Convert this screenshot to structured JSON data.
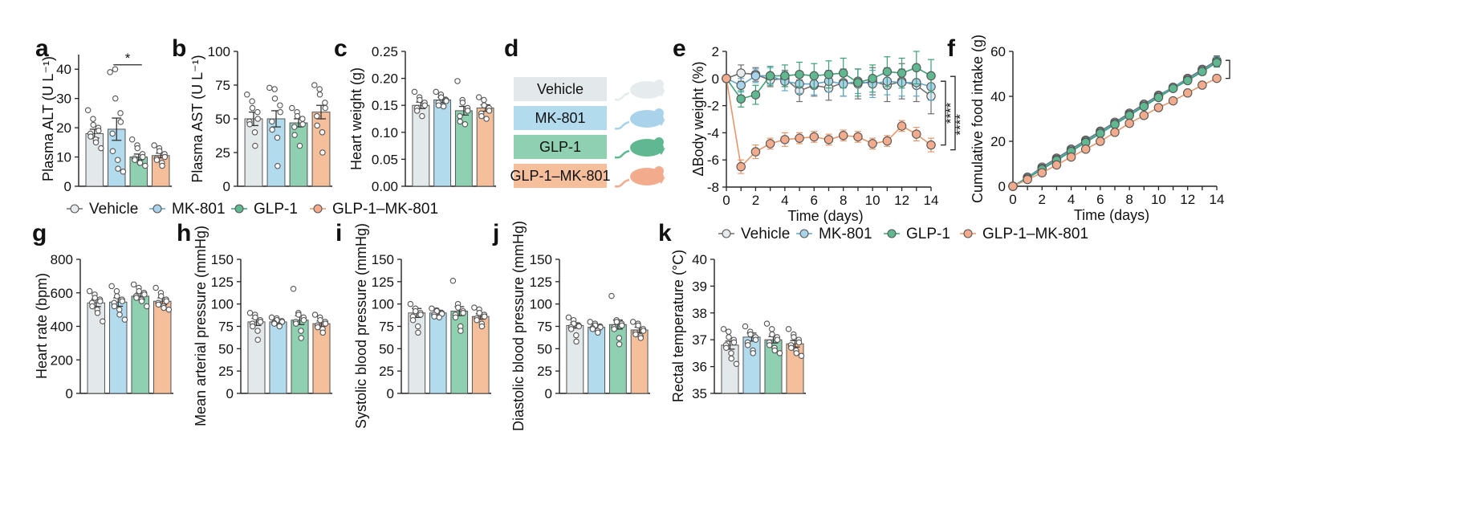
{
  "colors": {
    "Vehicle": "#e3e8ea",
    "MK-801": "#b3dbee",
    "GLP-1": "#8ed0af",
    "GLP-1–MK-801": "#f5bf9c",
    "Vehicle_line": "#6f6f6f",
    "MK-801_line": "#5fa8c4",
    "GLP-1_line": "#3c9f74",
    "GLP-1–MK-801_line": "#e6976a",
    "Vehicle_dim": "#e6ebee",
    "MK-801_dim": "#a9d3ea",
    "GLP-1_dim": "#5fb890",
    "GLP-1–MK-801_dim": "#f2ab8c"
  },
  "legend_bottom_1": {
    "items": [
      "Vehicle",
      "MK-801",
      "GLP-1",
      "GLP-1–MK-801"
    ]
  },
  "legend_bottom_2": {
    "items": [
      "Vehicle",
      "MK-801",
      "GLP-1",
      "GLP-1–MK-801"
    ]
  },
  "panel_d": {
    "label": "d",
    "groups": [
      "Vehicle",
      "MK-801",
      "GLP-1",
      "GLP-1–MK-801"
    ]
  },
  "chart_data": [
    {
      "panel": "a",
      "type": "bar",
      "categories": [
        "Vehicle",
        "MK-801",
        "GLP-1",
        "GLP-1–MK-801"
      ],
      "values": [
        18,
        19.5,
        10,
        10.5
      ],
      "errors": [
        1.5,
        3.8,
        1,
        0.8
      ],
      "points": [
        [
          26,
          23,
          21,
          20,
          19,
          18,
          17,
          16,
          15,
          13
        ],
        [
          39,
          40,
          30,
          25,
          22,
          18,
          12,
          9,
          6,
          5
        ],
        [
          16,
          14,
          13,
          11,
          10,
          9.5,
          9,
          8,
          8,
          7
        ],
        [
          14,
          13,
          12,
          11,
          10,
          9.5,
          9,
          8,
          7
        ]
      ],
      "ylabel": "Plasma ALT (U L⁻¹)",
      "ylim": [
        0,
        45
      ],
      "yticks": [
        0,
        10,
        20,
        30,
        40
      ],
      "annotation": "*"
    },
    {
      "panel": "b",
      "type": "bar",
      "categories": [
        "Vehicle",
        "MK-801",
        "GLP-1",
        "GLP-1–MK-801"
      ],
      "values": [
        50,
        50,
        47,
        55
      ],
      "errors": [
        5,
        6,
        3,
        5
      ],
      "points": [
        [
          68,
          63,
          58,
          55,
          50,
          48,
          46,
          40,
          30
        ],
        [
          73,
          72,
          65,
          60,
          55,
          48,
          42,
          36,
          15
        ],
        [
          58,
          55,
          52,
          50,
          46,
          44,
          38,
          30
        ],
        [
          75,
          72,
          68,
          62,
          58,
          52,
          45,
          40,
          25
        ]
      ],
      "ylabel": "Plasma AST (U L⁻¹)",
      "ylim": [
        0,
        100
      ],
      "yticks": [
        0,
        25,
        50,
        75,
        100
      ]
    },
    {
      "panel": "c",
      "type": "bar",
      "categories": [
        "Vehicle",
        "MK-801",
        "GLP-1",
        "GLP-1–MK-801"
      ],
      "values": [
        0.15,
        0.16,
        0.14,
        0.145
      ],
      "errors": [
        0.006,
        0.005,
        0.008,
        0.006
      ],
      "points": [
        [
          0.175,
          0.165,
          0.16,
          0.155,
          0.15,
          0.145,
          0.14,
          0.13
        ],
        [
          0.175,
          0.17,
          0.165,
          0.16,
          0.158,
          0.155,
          0.15,
          0.148
        ],
        [
          0.195,
          0.16,
          0.155,
          0.145,
          0.14,
          0.13,
          0.12,
          0.115
        ],
        [
          0.165,
          0.16,
          0.15,
          0.145,
          0.14,
          0.135,
          0.13,
          0.125
        ]
      ],
      "ylabel": "Heart weight (g)",
      "ylim": [
        0,
        0.25
      ],
      "yticks": [
        0,
        0.05,
        0.1,
        0.15,
        0.2,
        0.25
      ],
      "ytick_labels": [
        "0.00",
        "0.05",
        "0.10",
        "0.15",
        "0.20",
        "0.25"
      ]
    },
    {
      "panel": "e",
      "type": "line",
      "x": [
        0,
        1,
        2,
        3,
        4,
        5,
        6,
        7,
        8,
        9,
        10,
        11,
        12,
        13,
        14
      ],
      "series": [
        {
          "name": "Vehicle",
          "values": [
            0,
            0.4,
            0.3,
            -0.1,
            0,
            -0.9,
            -0.5,
            -0.7,
            -0.3,
            -0.4,
            -0.2,
            -0.5,
            -0.2,
            -0.5,
            -1.3
          ],
          "errors": [
            0,
            0.6,
            0.5,
            0.5,
            0.6,
            0.8,
            0.8,
            0.9,
            1.0,
            1.1,
            1.0,
            1.2,
            1.3,
            1.2,
            1.3
          ]
        },
        {
          "name": "MK-801",
          "values": [
            0,
            -0.5,
            0.2,
            0.2,
            -0.2,
            -0.4,
            -0.4,
            -0.2,
            -0.4,
            -0.2,
            -0.4,
            -0.2,
            -0.3,
            -0.3,
            -0.6
          ],
          "errors": [
            0,
            0.5,
            0.5,
            0.6,
            0.7,
            0.7,
            0.8,
            0.8,
            0.9,
            0.9,
            1.0,
            1.0,
            1.0,
            1.0,
            1.0
          ]
        },
        {
          "name": "GLP-1",
          "values": [
            0,
            -1.5,
            -1.2,
            0.2,
            0.2,
            0.3,
            0.2,
            0.3,
            0.4,
            -0.3,
            0,
            0.5,
            0.4,
            0.8,
            0.2
          ],
          "errors": [
            0,
            0.6,
            0.7,
            0.7,
            0.8,
            0.9,
            0.9,
            1.0,
            1.1,
            1.0,
            1.0,
            1.1,
            1.1,
            1.2,
            1.2
          ]
        },
        {
          "name": "GLP-1–MK-801",
          "values": [
            0,
            -6.5,
            -5.4,
            -4.8,
            -4.5,
            -4.4,
            -4.3,
            -4.5,
            -4.2,
            -4.3,
            -4.8,
            -4.6,
            -3.5,
            -4.1,
            -4.9
          ],
          "errors": [
            0,
            0.5,
            0.5,
            0.4,
            0.5,
            0.4,
            0.4,
            0.4,
            0.4,
            0.4,
            0.4,
            0.4,
            0.4,
            0.5,
            0.5
          ]
        }
      ],
      "ylabel": "ΔBody weight (%)",
      "xlabel": "Time (days)",
      "xlim": [
        0,
        14
      ],
      "ylim": [
        -8,
        2
      ],
      "xticks": [
        0,
        2,
        4,
        6,
        8,
        10,
        12,
        14
      ],
      "yticks": [
        -8,
        -6,
        -4,
        -2,
        0,
        2
      ],
      "annotation": "****"
    },
    {
      "panel": "f",
      "type": "line",
      "x": [
        0,
        1,
        2,
        3,
        4,
        5,
        6,
        7,
        8,
        9,
        10,
        11,
        12,
        13,
        14
      ],
      "series": [
        {
          "name": "Vehicle",
          "values": [
            0,
            4,
            8.5,
            12.5,
            16.5,
            20.5,
            24.5,
            28.5,
            32.5,
            36.5,
            40.5,
            44,
            48,
            52,
            56
          ],
          "errors": [
            0,
            0.5,
            0.5,
            0.5,
            0.5,
            0.5,
            0.5,
            0.5,
            0.6,
            0.6,
            0.7,
            0.8,
            1,
            1.5,
            2
          ]
        },
        {
          "name": "MK-801",
          "values": [
            0,
            4,
            8,
            12,
            16,
            20,
            24,
            28,
            32,
            36,
            40,
            44,
            47.5,
            51.5,
            55.5
          ],
          "errors": [
            0,
            0.5,
            0.5,
            0.5,
            0.5,
            0.5,
            0.5,
            0.5,
            0.6,
            0.6,
            0.7,
            0.8,
            1,
            1.5,
            2
          ]
        },
        {
          "name": "GLP-1",
          "values": [
            0,
            3.5,
            7.5,
            11.5,
            15.5,
            19.5,
            23.5,
            27.5,
            31.5,
            35.5,
            39.5,
            43.5,
            47,
            51,
            55
          ],
          "errors": [
            0,
            0.5,
            0.5,
            0.5,
            0.5,
            0.5,
            0.5,
            0.5,
            0.6,
            0.6,
            0.7,
            0.8,
            1,
            1.5,
            2
          ]
        },
        {
          "name": "GLP-1–MK-801",
          "values": [
            0,
            3,
            6,
            9.5,
            13,
            16.5,
            20,
            24,
            28,
            31.5,
            35,
            38,
            41.5,
            45,
            48
          ],
          "errors": [
            0,
            0.4,
            0.4,
            0.4,
            0.4,
            0.4,
            0.4,
            0.5,
            0.5,
            0.5,
            0.5,
            0.6,
            0.6,
            0.7,
            0.8
          ]
        }
      ],
      "ylabel": "Cumulative food intake (g)",
      "xlabel": "Time (days)",
      "xlim": [
        0,
        14
      ],
      "ylim": [
        0,
        60
      ],
      "xticks": [
        0,
        2,
        4,
        6,
        8,
        10,
        12,
        14
      ],
      "yticks": [
        0,
        20,
        40,
        60
      ]
    },
    {
      "panel": "g",
      "type": "bar",
      "categories": [
        "Vehicle",
        "MK-801",
        "GLP-1",
        "GLP-1–MK-801"
      ],
      "values": [
        540,
        545,
        580,
        550
      ],
      "errors": [
        22,
        25,
        18,
        20
      ],
      "points": [
        [
          610,
          590,
          570,
          560,
          550,
          540,
          520,
          500,
          480,
          430
        ],
        [
          640,
          610,
          580,
          560,
          550,
          540,
          520,
          500,
          470,
          440
        ],
        [
          650,
          630,
          610,
          600,
          590,
          580,
          570,
          560,
          550,
          520
        ],
        [
          630,
          600,
          580,
          560,
          550,
          540,
          530,
          520,
          510,
          500
        ]
      ],
      "ylabel": "Heart rate (bpm)",
      "ylim": [
        0,
        800
      ],
      "yticks": [
        0,
        200,
        400,
        600,
        800
      ]
    },
    {
      "panel": "h",
      "type": "bar",
      "categories": [
        "Vehicle",
        "MK-801",
        "GLP-1",
        "GLP-1–MK-801"
      ],
      "values": [
        80,
        80,
        82,
        78
      ],
      "errors": [
        4,
        2,
        5,
        3
      ],
      "points": [
        [
          90,
          88,
          85,
          82,
          80,
          78,
          75,
          70,
          60
        ],
        [
          85,
          84,
          82,
          81,
          80,
          79,
          78,
          76,
          75
        ],
        [
          117,
          90,
          88,
          85,
          82,
          80,
          78,
          70,
          62
        ],
        [
          88,
          85,
          82,
          80,
          78,
          76,
          74,
          72,
          68
        ]
      ],
      "ylabel": "Mean arterial pressure (mmHg)",
      "ylim": [
        0,
        150
      ],
      "yticks": [
        0,
        25,
        50,
        75,
        100,
        125,
        150
      ]
    },
    {
      "panel": "i",
      "type": "bar",
      "categories": [
        "Vehicle",
        "MK-801",
        "GLP-1",
        "GLP-1–MK-801"
      ],
      "values": [
        90,
        90,
        92,
        86
      ],
      "errors": [
        5,
        3,
        5,
        3
      ],
      "points": [
        [
          100,
          95,
          92,
          90,
          88,
          86,
          82,
          75,
          68
        ],
        [
          95,
          93,
          92,
          90,
          89,
          88,
          86,
          85
        ],
        [
          126,
          100,
          96,
          92,
          90,
          88,
          85,
          75,
          70
        ],
        [
          96,
          94,
          90,
          88,
          86,
          84,
          82,
          78,
          75
        ]
      ],
      "ylabel": "Systolic blood pressure (mmHg)",
      "ylim": [
        0,
        150
      ],
      "yticks": [
        0,
        25,
        50,
        75,
        100,
        125,
        150
      ]
    },
    {
      "panel": "j",
      "type": "bar",
      "categories": [
        "Vehicle",
        "MK-801",
        "GLP-1",
        "GLP-1–MK-801"
      ],
      "values": [
        76,
        74,
        77,
        71
      ],
      "errors": [
        3,
        3,
        5,
        3
      ],
      "points": [
        [
          85,
          82,
          78,
          76,
          75,
          74,
          72,
          65,
          58
        ],
        [
          80,
          78,
          76,
          75,
          74,
          73,
          72,
          70,
          68
        ],
        [
          109,
          82,
          80,
          78,
          76,
          74,
          72,
          62,
          55
        ],
        [
          80,
          78,
          76,
          72,
          70,
          68,
          66,
          64,
          62
        ]
      ],
      "ylabel": "Diastolic blood pressure (mmHg)",
      "ylim": [
        0,
        150
      ],
      "yticks": [
        0,
        25,
        50,
        75,
        100,
        125,
        150
      ]
    },
    {
      "panel": "k",
      "type": "bar",
      "categories": [
        "Vehicle",
        "MK-801",
        "GLP-1",
        "GLP-1–MK-801"
      ],
      "values": [
        36.8,
        37.1,
        37.0,
        36.85
      ],
      "errors": [
        0.15,
        0.15,
        0.12,
        0.12
      ],
      "points": [
        [
          37.4,
          37.3,
          37.1,
          37.0,
          36.9,
          36.8,
          36.7,
          36.5,
          36.3,
          36.1
        ],
        [
          37.5,
          37.3,
          37.2,
          37.1,
          37.0,
          36.9,
          36.8,
          36.6,
          36.5
        ],
        [
          37.6,
          37.4,
          37.2,
          37.1,
          37.0,
          36.9,
          36.8,
          36.7,
          36.6,
          36.5
        ],
        [
          37.4,
          37.2,
          37.1,
          37.0,
          36.9,
          36.8,
          36.7,
          36.6,
          36.5,
          36.4
        ]
      ],
      "ylabel": "Rectal temperature (°C)",
      "ylim": [
        35,
        40
      ],
      "yticks": [
        35,
        36,
        37,
        38,
        39,
        40
      ]
    }
  ]
}
